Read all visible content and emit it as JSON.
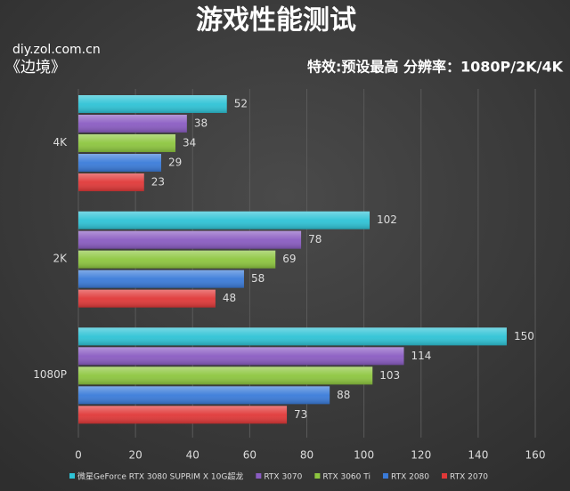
{
  "chart_data": {
    "type": "hbar",
    "title": "游戏性能测试",
    "annotations": [
      "diy.zol.com.cn",
      "《边境》",
      "特效:预设最高  分辨率：1080P/2K/4K"
    ],
    "categories": [
      "4K",
      "2K",
      "1080P"
    ],
    "series": [
      {
        "name": "微星GeForce RTX 3080 SUPRIM X 10G超龙",
        "color": "#2ec3d6",
        "values": [
          52,
          102,
          150
        ]
      },
      {
        "name": "RTX 3070",
        "color": "#8a5cc2",
        "values": [
          38,
          78,
          114
        ]
      },
      {
        "name": "RTX 3060 Ti",
        "color": "#8dc63f",
        "values": [
          34,
          69,
          103
        ]
      },
      {
        "name": "RTX 2080",
        "color": "#3a7bd9",
        "values": [
          29,
          58,
          88
        ]
      },
      {
        "name": "RTX 2070",
        "color": "#e03838",
        "values": [
          23,
          48,
          73
        ]
      }
    ],
    "xlim": [
      0,
      160
    ],
    "xticks": [
      0,
      20,
      40,
      60,
      80,
      100,
      120,
      140,
      160
    ],
    "grid": true
  }
}
